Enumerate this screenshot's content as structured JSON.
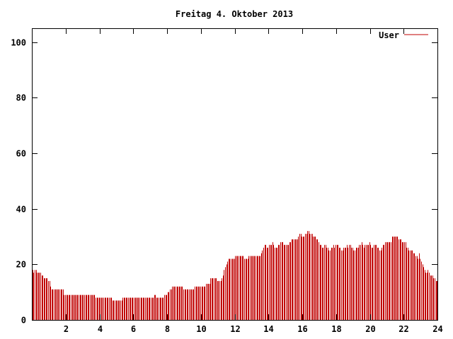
{
  "chart_data": {
    "type": "bar",
    "title": "Freitag 4. Oktober 2013",
    "xlabel": "",
    "ylabel": "",
    "xlim": [
      0,
      24
    ],
    "ylim": [
      0,
      105
    ],
    "x_ticks": [
      "2",
      "4",
      "6",
      "8",
      "10",
      "12",
      "14",
      "16",
      "18",
      "20",
      "22",
      "24"
    ],
    "y_ticks": [
      "0",
      "20",
      "40",
      "60",
      "80",
      "100"
    ],
    "legend": {
      "position": "top-right"
    },
    "grid": false,
    "bar_color": "#c00000",
    "series": [
      {
        "name": "User",
        "values": [
          18,
          17,
          18,
          18,
          17,
          17,
          17,
          17,
          16,
          16,
          15,
          15,
          15,
          15,
          14,
          14,
          12,
          11,
          11,
          11,
          11,
          11,
          11,
          11,
          11,
          11,
          11,
          11,
          9,
          9,
          9,
          9,
          9,
          9,
          9,
          9,
          9,
          9,
          9,
          9,
          9,
          9,
          9,
          9,
          9,
          9,
          9,
          9,
          9,
          9,
          9,
          9,
          9,
          9,
          9,
          9,
          8,
          8,
          8,
          8,
          8,
          8,
          8,
          8,
          8,
          8,
          8,
          8,
          8,
          8,
          8,
          7,
          7,
          7,
          7,
          7,
          7,
          7,
          7,
          7,
          8,
          8,
          8,
          8,
          8,
          8,
          8,
          8,
          8,
          8,
          8,
          8,
          8,
          8,
          8,
          8,
          8,
          8,
          8,
          8,
          8,
          8,
          8,
          8,
          8,
          8,
          8,
          8,
          9,
          9,
          8,
          8,
          8,
          8,
          8,
          8,
          8,
          9,
          9,
          9,
          10,
          10,
          11,
          11,
          12,
          12,
          12,
          12,
          12,
          12,
          12,
          12,
          12,
          12,
          11,
          11,
          11,
          11,
          11,
          11,
          11,
          11,
          11,
          11,
          12,
          12,
          12,
          12,
          12,
          12,
          12,
          12,
          12,
          12,
          13,
          13,
          13,
          13,
          15,
          15,
          15,
          15,
          15,
          15,
          14,
          14,
          14,
          14,
          15,
          16,
          18,
          19,
          20,
          21,
          22,
          22,
          22,
          22,
          22,
          22,
          23,
          23,
          23,
          23,
          23,
          23,
          23,
          23,
          22,
          22,
          22,
          22,
          23,
          23,
          23,
          23,
          23,
          23,
          23,
          23,
          23,
          23,
          23,
          24,
          25,
          26,
          27,
          27,
          26,
          26,
          27,
          27,
          27,
          28,
          27,
          26,
          26,
          26,
          27,
          27,
          28,
          28,
          28,
          27,
          27,
          27,
          27,
          27,
          28,
          28,
          29,
          29,
          29,
          29,
          29,
          29,
          30,
          31,
          31,
          30,
          30,
          30,
          31,
          31,
          32,
          32,
          31,
          31,
          31,
          30,
          30,
          30,
          29,
          29,
          28,
          27,
          27,
          26,
          26,
          27,
          27,
          26,
          26,
          25,
          25,
          26,
          26,
          27,
          26,
          27,
          27,
          27,
          26,
          26,
          25,
          25,
          26,
          26,
          26,
          27,
          26,
          27,
          27,
          26,
          26,
          25,
          25,
          26,
          26,
          26,
          27,
          27,
          28,
          27,
          26,
          27,
          27,
          27,
          27,
          28,
          27,
          26,
          26,
          27,
          27,
          27,
          26,
          26,
          25,
          25,
          26,
          27,
          27,
          28,
          28,
          28,
          28,
          28,
          28,
          30,
          30,
          30,
          30,
          30,
          30,
          29,
          29,
          29,
          28,
          28,
          28,
          28,
          26,
          26,
          25,
          25,
          25,
          25,
          24,
          24,
          23,
          23,
          22,
          24,
          22,
          21,
          20,
          19,
          18,
          17,
          17,
          18,
          17,
          16,
          16,
          16,
          15,
          15,
          14,
          14
        ]
      }
    ]
  }
}
